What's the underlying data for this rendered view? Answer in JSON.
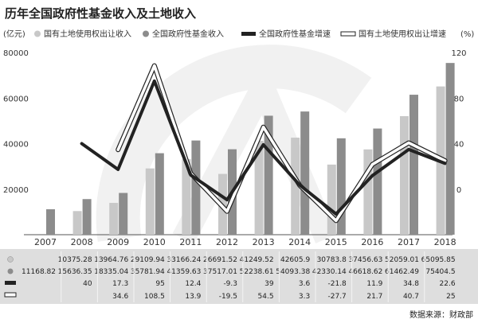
{
  "title": "历年全国政府性基金收入及土地收入",
  "legend": {
    "unit_left": "(亿元)",
    "land": "国有土地使用权出让收入",
    "fund": "全国政府性基金收入",
    "fund_growth": "全国政府性基金增速",
    "land_growth": "国有土地使用权出让增速",
    "unit_right": "(%)"
  },
  "source": "数据来源：财政部",
  "colors": {
    "land": "#c8c8c8",
    "fund": "#8c8c8c",
    "line": "#222222",
    "panel": "#dedede",
    "watermark": "#f1f1f1"
  },
  "chart_data": {
    "type": "bar",
    "title": "历年全国政府性基金收入及土地收入",
    "categories": [
      "2007",
      "2008",
      "2009",
      "2010",
      "2011",
      "2012",
      "2013",
      "2014",
      "2015",
      "2016",
      "2017",
      "2018"
    ],
    "y_left": {
      "label": "(亿元)",
      "range": [
        0,
        80000
      ],
      "ticks": [
        "20000",
        "40000",
        "60000",
        "80000"
      ],
      "tick_values": [
        20000,
        40000,
        60000,
        80000
      ]
    },
    "y_right": {
      "label": "(%)",
      "range": [
        -40,
        120
      ],
      "ticks": [
        "0",
        "40",
        "80",
        "120"
      ],
      "tick_values": [
        0,
        40,
        80,
        120
      ]
    },
    "series": [
      {
        "name": "国有土地使用权出让收入",
        "kind": "bar",
        "values": [
          null,
          10375.28,
          13964.76,
          29109.94,
          33166.24,
          26691.52,
          41249.52,
          42605.9,
          30783.8,
          37456.63,
          52059.01,
          65095.85
        ],
        "labels": [
          "",
          "10375.28",
          "13964.76",
          "29109.94",
          "33166.24",
          "26691.52",
          "41249.52",
          "42605.9",
          "30783.8",
          "37456.63",
          "52059.01",
          "65095.85"
        ]
      },
      {
        "name": "全国政府性基金收入",
        "kind": "bar",
        "values": [
          11168.82,
          15636.35,
          18335.04,
          35781.94,
          41359.63,
          37517.01,
          52238.61,
          54093.38,
          42330.14,
          46618.62,
          61462.49,
          75404.5
        ],
        "labels": [
          "11168.82",
          "15636.35",
          "18335.04",
          "35781.94",
          "41359.63",
          "37517.01",
          "52238.61",
          "54093.38",
          "42330.14",
          "46618.62",
          "61462.49",
          "75404.5"
        ]
      },
      {
        "name": "全国政府性基金增速",
        "kind": "line",
        "axis": "right",
        "values": [
          null,
          40,
          17.3,
          95,
          12.4,
          -9.3,
          39,
          3.6,
          -21.8,
          11.9,
          34.8,
          22.6
        ],
        "labels": [
          "",
          "40",
          "17.3",
          "95",
          "12.4",
          "-9.3",
          "39",
          "3.6",
          "-21.8",
          "11.9",
          "34.8",
          "22.6"
        ]
      },
      {
        "name": "国有土地使用权出让增速",
        "kind": "line",
        "axis": "right",
        "values": [
          null,
          null,
          34.6,
          108.5,
          13.9,
          -19.5,
          54.5,
          3.3,
          -27.7,
          21.7,
          40.7,
          25
        ],
        "labels": [
          "",
          "",
          "34.6",
          "108.5",
          "13.9",
          "-19.5",
          "54.5",
          "3.3",
          "-27.7",
          "21.7",
          "40.7",
          "25"
        ]
      }
    ]
  }
}
